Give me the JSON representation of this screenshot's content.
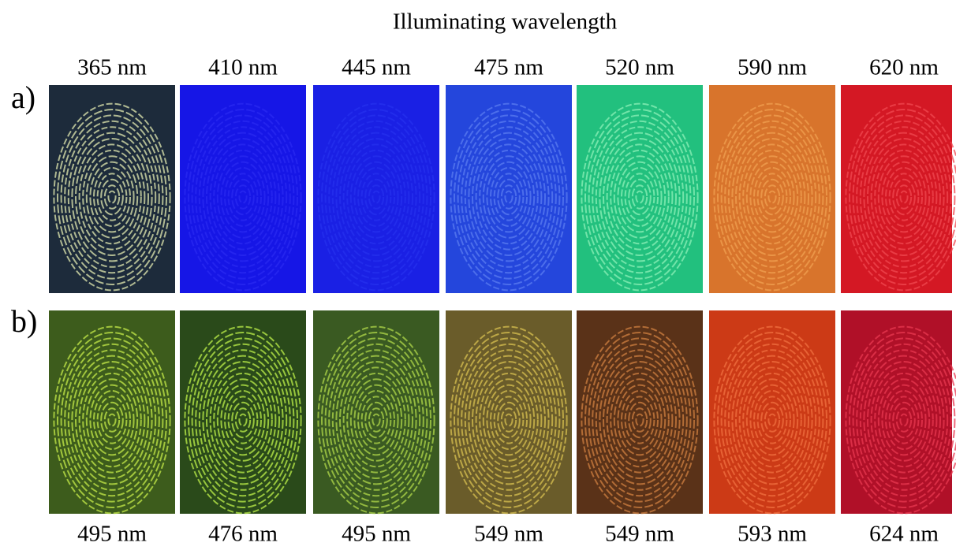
{
  "title": "Illuminating wavelength",
  "rows": [
    {
      "label": "a)",
      "wavelengths": [
        "365 nm",
        "410 nm",
        "445 nm",
        "475 nm",
        "520 nm",
        "590 nm",
        "620 nm"
      ]
    },
    {
      "label": "b)",
      "wavelengths": [
        "495 nm",
        "476 nm",
        "495 nm",
        "549 nm",
        "549 nm",
        "593 nm",
        "624 nm"
      ]
    }
  ]
}
